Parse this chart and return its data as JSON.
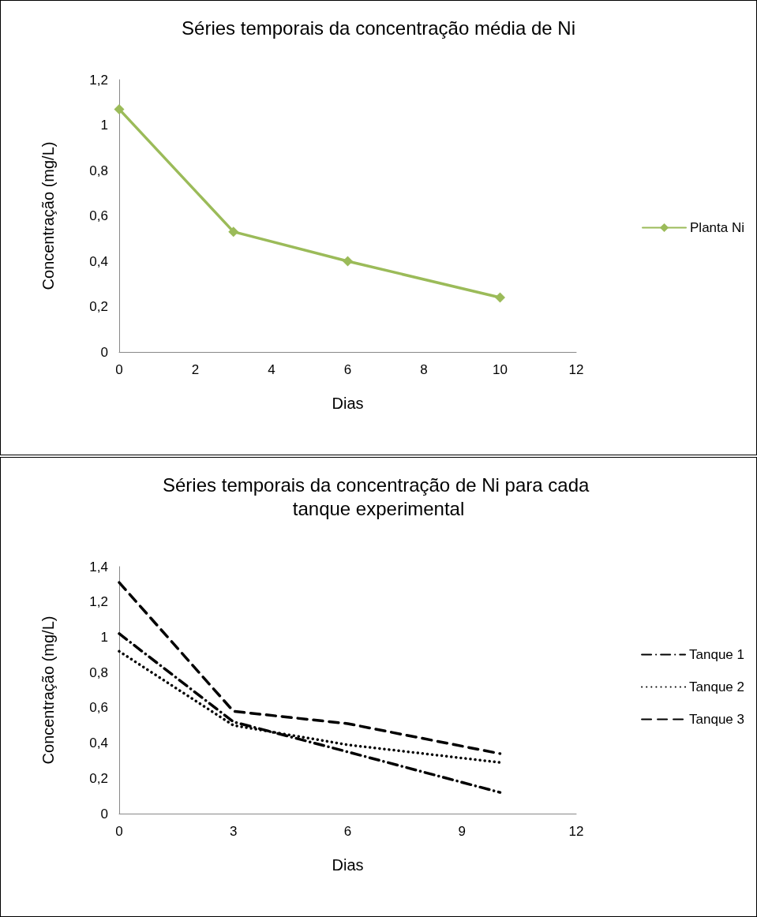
{
  "chart_data": [
    {
      "type": "line",
      "title": "Séries temporais da concentração média de Ni",
      "xlabel": "Dias",
      "ylabel": "Concentração (mg/L)",
      "x": [
        0,
        3,
        6,
        10
      ],
      "series": [
        {
          "name": "Planta Ni",
          "color": "#9bbb59",
          "values": [
            1.07,
            0.53,
            0.4,
            0.24
          ]
        }
      ],
      "xlim": [
        0,
        12
      ],
      "xticks": [
        0,
        2,
        4,
        6,
        8,
        10,
        12
      ],
      "ylim": [
        0,
        1.2
      ],
      "yticks": [
        {
          "value": 0,
          "label": "0"
        },
        {
          "value": 0.2,
          "label": "0,2"
        },
        {
          "value": 0.4,
          "label": "0,4"
        },
        {
          "value": 0.6,
          "label": "0,6"
        },
        {
          "value": 0.8,
          "label": "0,8"
        },
        {
          "value": 1,
          "label": "1"
        },
        {
          "value": 1.2,
          "label": "1,2"
        }
      ],
      "marker": "diamond",
      "line_style": "solid",
      "legend": "right"
    },
    {
      "type": "line",
      "title": "Séries temporais da concentração de Ni para cada tanque experimental",
      "xlabel": "Dias",
      "ylabel": "Concentração (mg/L)",
      "x": [
        0,
        3,
        6,
        10
      ],
      "series": [
        {
          "name": "Tanque 1",
          "color": "#000000",
          "line_style": "dashdot",
          "values": [
            1.02,
            0.52,
            0.35,
            0.12
          ]
        },
        {
          "name": "Tanque 2",
          "color": "#000000",
          "line_style": "dotted",
          "values": [
            0.92,
            0.5,
            0.39,
            0.29
          ]
        },
        {
          "name": "Tanque 3",
          "color": "#000000",
          "line_style": "dashed",
          "values": [
            1.31,
            0.58,
            0.51,
            0.34
          ]
        }
      ],
      "xlim": [
        0,
        12
      ],
      "xticks": [
        0,
        3,
        6,
        9,
        12
      ],
      "ylim": [
        0,
        1.4
      ],
      "yticks": [
        {
          "value": 0,
          "label": "0"
        },
        {
          "value": 0.2,
          "label": "0,2"
        },
        {
          "value": 0.4,
          "label": "0,4"
        },
        {
          "value": 0.6,
          "label": "0,6"
        },
        {
          "value": 0.8,
          "label": "0,8"
        },
        {
          "value": 1,
          "label": "1"
        },
        {
          "value": 1.2,
          "label": "1,2"
        },
        {
          "value": 1.4,
          "label": "1,4"
        }
      ],
      "marker": "none",
      "legend": "right"
    }
  ]
}
